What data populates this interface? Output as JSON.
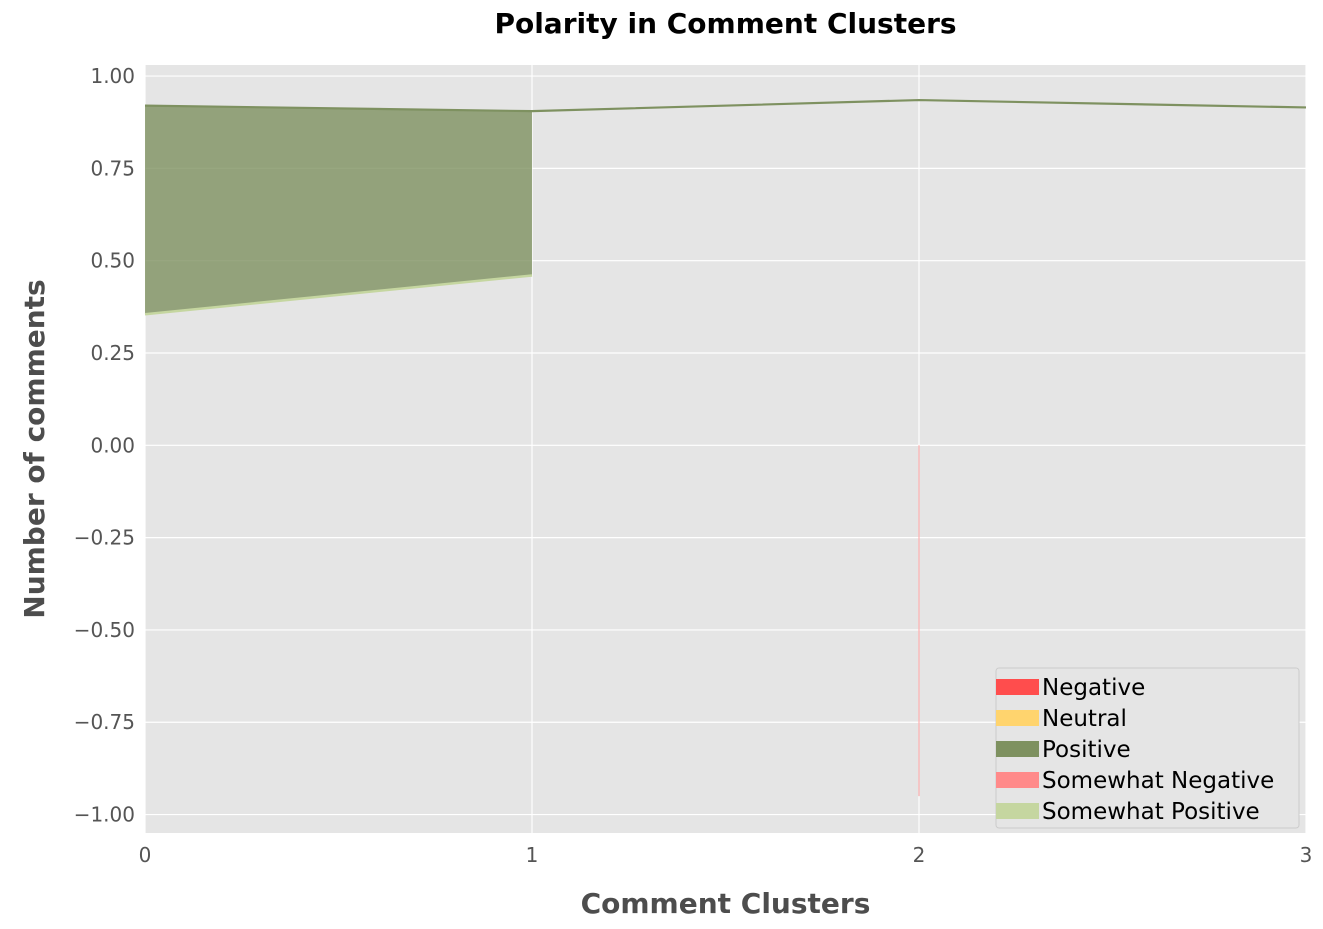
{
  "chart_data": {
    "type": "area",
    "title": "Polarity in Comment Clusters",
    "xlabel": "Comment Clusters",
    "ylabel": "Number of comments",
    "x": [
      0,
      1,
      2,
      3
    ],
    "xlim": [
      0,
      3
    ],
    "ylim": [
      -1.05,
      1.03
    ],
    "xticks": [
      "0",
      "1",
      "2",
      "3"
    ],
    "yticks": [
      "1.00",
      "0.75",
      "0.50",
      "0.25",
      "0.00",
      "−0.25",
      "−0.50",
      "−0.75",
      "−1.00"
    ],
    "ytick_values": [
      1.0,
      0.75,
      0.5,
      0.25,
      0.0,
      -0.25,
      -0.5,
      -0.75,
      -1.0
    ],
    "grid": true,
    "legend_position": "lower-right",
    "series": [
      {
        "name": "Negative",
        "color": "#ff4d4d",
        "segments": []
      },
      {
        "name": "Neutral",
        "color": "#ffd46e",
        "segments": []
      },
      {
        "name": "Positive",
        "color": "#7e9160",
        "line": [
          0.92,
          0.905,
          0.935,
          0.915
        ],
        "fill_x": [
          0,
          1
        ],
        "fill_upper": [
          0.92,
          0.905
        ],
        "fill_lower": [
          0.355,
          0.46
        ]
      },
      {
        "name": "Somewhat Negative",
        "color": "#ff8a8a",
        "vertical_at_x": 2,
        "from": 0.0,
        "to": -0.95
      },
      {
        "name": "Somewhat Positive",
        "color": "#c5d6a0",
        "line_x": [
          0,
          1
        ],
        "line": [
          0.355,
          0.46
        ]
      }
    ]
  }
}
